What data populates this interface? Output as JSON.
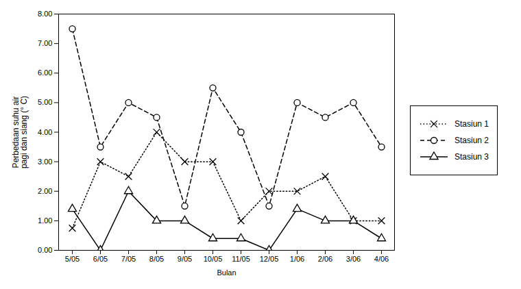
{
  "chart_data": {
    "type": "line",
    "xlabel": "Bulan",
    "ylabel": "Perbedaan suhu air\npagi dan siang (° C)",
    "categories": [
      "5/05",
      "6/05",
      "7/05",
      "8/05",
      "9/05",
      "10/05",
      "11/05",
      "12/05",
      "1/06",
      "2/06",
      "3/06",
      "4/06"
    ],
    "series": [
      {
        "name": "Stasiun 1",
        "color": "black",
        "marker": "x",
        "line_style": "dotted",
        "values": [
          0.75,
          3.0,
          2.5,
          4.0,
          3.0,
          3.0,
          1.0,
          2.0,
          2.0,
          2.5,
          1.0,
          1.0
        ]
      },
      {
        "name": "Stasiun 2",
        "color": "black",
        "marker": "o",
        "line_style": "dashed",
        "values": [
          7.5,
          3.5,
          5.0,
          4.5,
          1.5,
          5.5,
          4.0,
          1.5,
          5.0,
          4.5,
          5.0,
          3.5
        ]
      },
      {
        "name": "Stasiun 3",
        "color": "black",
        "marker": "^",
        "line_style": "solid",
        "values": [
          1.4,
          0.0,
          2.0,
          1.0,
          1.0,
          0.4,
          0.4,
          0.0,
          1.4,
          1.0,
          1.0,
          0.4
        ]
      }
    ],
    "ylim": [
      0.0,
      8.0
    ],
    "yticks": [
      {
        "value": 0.0,
        "label": "0.00"
      },
      {
        "value": 1.0,
        "label": "1.00"
      },
      {
        "value": 2.0,
        "label": "2.00"
      },
      {
        "value": 3.0,
        "label": "3.00"
      },
      {
        "value": 4.0,
        "label": "4.00"
      },
      {
        "value": 5.0,
        "label": "5.00"
      },
      {
        "value": 6.0,
        "label": "6.00"
      },
      {
        "value": 7.0,
        "label": "7.00"
      },
      {
        "value": 8.0,
        "label": "8.00"
      }
    ],
    "grid": false,
    "legend": "right"
  }
}
